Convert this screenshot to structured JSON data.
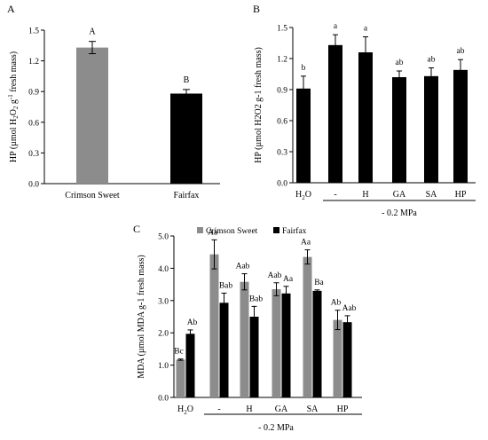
{
  "chart_data": [
    {
      "type": "bar",
      "panel_label": "A",
      "ylabel_parts": [
        "HP (µmol H",
        "2",
        "O",
        "2",
        " g",
        "-1",
        " fresh mass)"
      ],
      "categories": [
        "Crimson Sweet",
        "Fairfax"
      ],
      "values": [
        1.33,
        0.88
      ],
      "errors": [
        0.06,
        0.04
      ],
      "letters": [
        "A",
        "B"
      ],
      "colors": [
        "#8c8c8c",
        "#000000"
      ],
      "ylim": [
        0,
        1.5
      ],
      "yticks": [
        "0.0",
        "0.3",
        "0.6",
        "0.9",
        "1.2",
        "1.5"
      ]
    },
    {
      "type": "bar",
      "panel_label": "B",
      "ylabel": "HP (µmol H2O2 g-1 fresh mass)",
      "categories": [
        "H2O",
        "-",
        "H",
        "GA",
        "SA",
        "HP"
      ],
      "values": [
        0.91,
        1.33,
        1.26,
        1.02,
        1.03,
        1.09
      ],
      "errors": [
        0.12,
        0.1,
        0.15,
        0.06,
        0.08,
        0.1
      ],
      "letters": [
        "b",
        "a",
        "a",
        "ab",
        "ab",
        "ab"
      ],
      "color": "#000000",
      "ylim": [
        0,
        1.5
      ],
      "yticks": [
        "0.0",
        "0.3",
        "0.6",
        "0.9",
        "1.2",
        "1.5"
      ],
      "group_label": "- 0.2 MPa"
    },
    {
      "type": "bar",
      "panel_label": "C",
      "ylabel": "MDA (µmol MDA g-1 fresh mass)",
      "categories": [
        "H2O",
        "-",
        "H",
        "GA",
        "SA",
        "HP"
      ],
      "series": [
        {
          "name": "Crimson Sweet",
          "color": "#8c8c8c",
          "values": [
            1.17,
            4.43,
            3.58,
            3.35,
            4.35,
            2.4
          ],
          "errors": [
            0.02,
            0.45,
            0.25,
            0.2,
            0.22,
            0.3
          ],
          "letters": [
            "Bc",
            "Aa",
            "Aab",
            "Aab",
            "Aa",
            "Ab"
          ]
        },
        {
          "name": "Fairfax",
          "color": "#000000",
          "values": [
            1.97,
            2.93,
            2.5,
            3.22,
            3.3,
            2.33
          ],
          "errors": [
            0.12,
            0.3,
            0.32,
            0.22,
            0.03,
            0.2
          ],
          "letters": [
            "Ab",
            "Bab",
            "Bab",
            "Aa",
            "Ba",
            "Aab"
          ]
        }
      ],
      "ylim": [
        0,
        5
      ],
      "yticks": [
        "0.0",
        "1.0",
        "2.0",
        "3.0",
        "4.0",
        "5.0"
      ],
      "group_label": "- 0.2 MPa",
      "legend": "top"
    }
  ]
}
